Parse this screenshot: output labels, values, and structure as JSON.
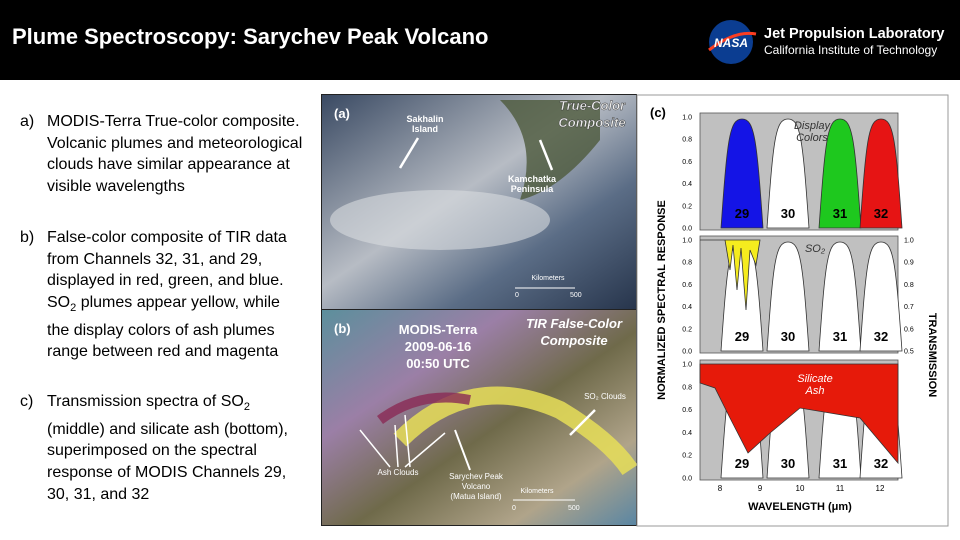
{
  "header": {
    "title": "Plume Spectroscopy: Sarychev Peak Volcano",
    "logo": "NASA",
    "org_name": "Jet Propulsion Laboratory",
    "org_sub": "California Institute of Technology"
  },
  "bullets": [
    {
      "marker": "a)",
      "parts": [
        "MODIS-Terra True-color composite. Volcanic plumes and meteorological clouds have similar appearance at visible wavelengths"
      ]
    },
    {
      "marker": "b)",
      "parts": [
        "False-color composite of TIR data from Channels 32, 31, and 29, displayed in red, green, and blue. SO",
        "2",
        " plumes appear yellow, while the display colors of ash plumes range between red and magenta"
      ]
    },
    {
      "marker": "c)",
      "parts": [
        "Transmission spectra of SO",
        "2",
        " (middle) and silicate ash (bottom), superimposed on the spectral response of MODIS Channels 29, 30, 31, and 32"
      ]
    }
  ],
  "panel_a": {
    "label": "(a)",
    "title": [
      "True-Color",
      "Composite"
    ],
    "annotations": [
      [
        "Sakhalin",
        "Island"
      ],
      [
        "Kamchatka",
        "Peninsula"
      ]
    ],
    "scale_title": "Kilometers",
    "scale_ticks": [
      "0",
      "500"
    ]
  },
  "panel_b": {
    "label": "(b)",
    "title": [
      "TIR False-Color",
      "Composite"
    ],
    "caption": [
      "MODIS-Terra",
      "2009-06-16",
      "00:50 UTC"
    ],
    "annotations": [
      "SO₂ Clouds",
      "Ash Clouds",
      "Sarychev Peak",
      "Volcano",
      "(Matua Island)"
    ],
    "scale_title": "Kilometers",
    "scale_ticks": [
      "0",
      "500"
    ]
  },
  "panel_c": {
    "label": "(c)",
    "y_label": "NORMALIZED SPECTRAL RESPONSE",
    "y2_label": "TRANSMISSION",
    "x_label": "WAVELENGTH (μm)",
    "notes": [
      [
        "Display",
        "Colors"
      ],
      [
        "SO₂"
      ],
      [
        "Silicate",
        "Ash"
      ]
    ],
    "channels": [
      "29",
      "30",
      "31",
      "32"
    ],
    "yticks": [
      "0.0",
      "0.2",
      "0.4",
      "0.6",
      "0.8",
      "1.0"
    ],
    "y2ticks": [
      "0.5",
      "0.6",
      "0.7",
      "0.8",
      "0.9",
      "1.0"
    ],
    "xticks": [
      "8",
      "9",
      "10",
      "11",
      "12"
    ]
  }
}
